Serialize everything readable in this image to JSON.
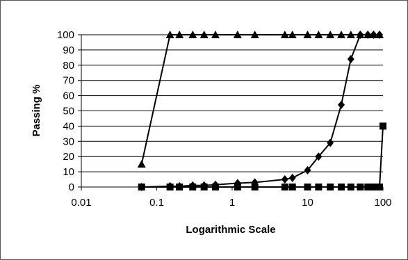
{
  "chart_data": {
    "type": "scatter",
    "title": "",
    "xlabel": "Logarithmic Scale",
    "ylabel": "Passing %",
    "x_scale": "log",
    "xlim": [
      0.01,
      100
    ],
    "ylim": [
      0,
      100
    ],
    "x_ticks": [
      0.01,
      0.1,
      1,
      10,
      100
    ],
    "x_tick_labels": [
      "0.01",
      "0.1",
      "1",
      "10",
      "100"
    ],
    "y_ticks": [
      0,
      10,
      20,
      30,
      40,
      50,
      60,
      70,
      80,
      90,
      100
    ],
    "y_tick_labels": [
      "0",
      "10",
      "20",
      "30",
      "40",
      "50",
      "60",
      "70",
      "80",
      "90",
      "100"
    ],
    "grid": "horizontal",
    "legend": "none",
    "series": [
      {
        "marker": "triangle",
        "color": "#000000",
        "points": [
          [
            0.063,
            15
          ],
          [
            0.15,
            100
          ],
          [
            0.2,
            100
          ],
          [
            0.3,
            100
          ],
          [
            0.425,
            100
          ],
          [
            0.6,
            100
          ],
          [
            1.18,
            100
          ],
          [
            2,
            100
          ],
          [
            5,
            100
          ],
          [
            6.3,
            100
          ],
          [
            10,
            100
          ],
          [
            14,
            100
          ],
          [
            20,
            100
          ],
          [
            28,
            100
          ],
          [
            37.5,
            100
          ],
          [
            50,
            100
          ],
          [
            63,
            100
          ],
          [
            75,
            100
          ],
          [
            90,
            100
          ]
        ]
      },
      {
        "marker": "diamond",
        "color": "#000000",
        "points": [
          [
            0.063,
            0
          ],
          [
            0.15,
            0.5
          ],
          [
            0.2,
            0.5
          ],
          [
            0.3,
            1
          ],
          [
            0.425,
            1
          ],
          [
            0.6,
            1.5
          ],
          [
            1.18,
            2.5
          ],
          [
            2,
            3
          ],
          [
            5,
            5
          ],
          [
            6.3,
            6
          ],
          [
            10,
            11
          ],
          [
            14,
            20
          ],
          [
            20,
            29
          ],
          [
            28,
            54
          ],
          [
            37.5,
            84
          ],
          [
            50,
            100
          ],
          [
            63,
            100
          ],
          [
            75,
            100
          ],
          [
            90,
            100
          ]
        ]
      },
      {
        "marker": "square",
        "color": "#000000",
        "points": [
          [
            0.063,
            0
          ],
          [
            0.15,
            0
          ],
          [
            0.2,
            0
          ],
          [
            0.3,
            0
          ],
          [
            0.425,
            0
          ],
          [
            0.6,
            0
          ],
          [
            1.18,
            0
          ],
          [
            2,
            0
          ],
          [
            5,
            0
          ],
          [
            6.3,
            0
          ],
          [
            10,
            0
          ],
          [
            14,
            0
          ],
          [
            20,
            0
          ],
          [
            28,
            0
          ],
          [
            37.5,
            0
          ],
          [
            50,
            0
          ],
          [
            63,
            0
          ],
          [
            75,
            0
          ],
          [
            90,
            0
          ],
          [
            100,
            40
          ]
        ]
      }
    ]
  }
}
